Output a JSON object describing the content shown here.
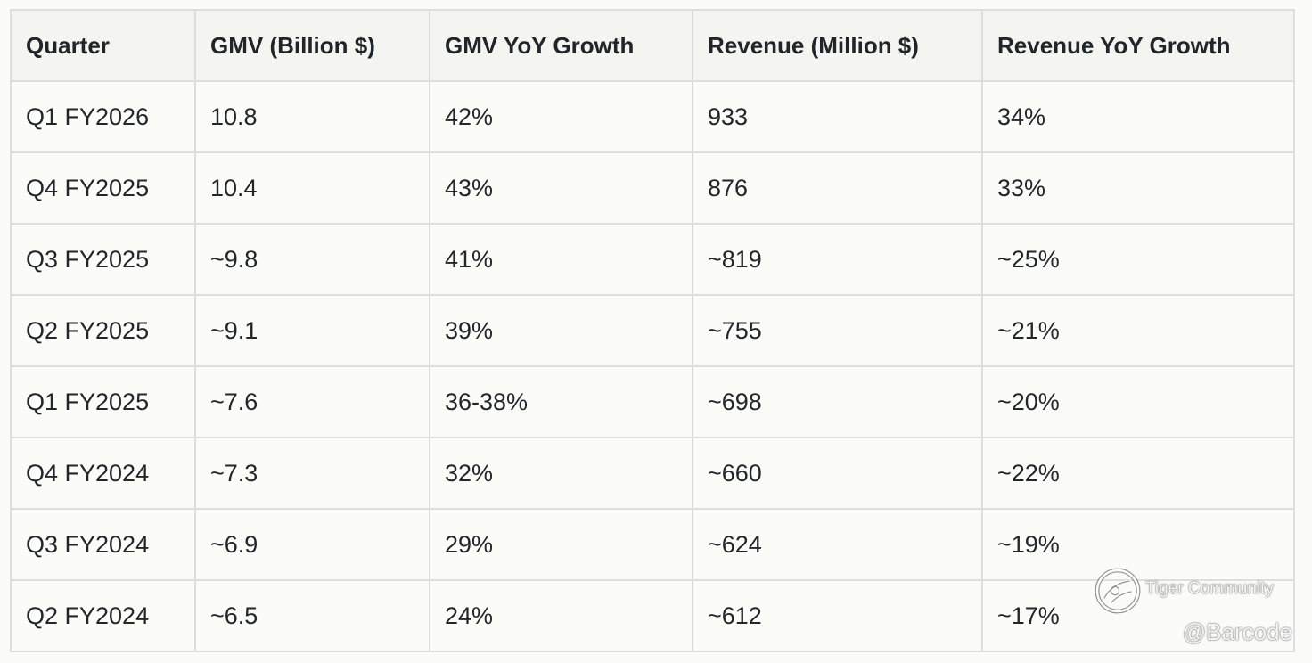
{
  "table": {
    "headers": [
      "Quarter",
      "GMV (Billion $)",
      "GMV YoY Growth",
      "Revenue (Million $)",
      "Revenue YoY Growth"
    ],
    "rows": [
      [
        "Q1 FY2026",
        "10.8",
        "42%",
        "933",
        "34%"
      ],
      [
        "Q4 FY2025",
        "10.4",
        "43%",
        "876",
        "33%"
      ],
      [
        "Q3 FY2025",
        "~9.8",
        "41%",
        "~819",
        "~25%"
      ],
      [
        "Q2 FY2025",
        "~9.1",
        "39%",
        "~755",
        "~21%"
      ],
      [
        "Q1 FY2025",
        "~7.6",
        "36-38%",
        "~698",
        "~20%"
      ],
      [
        "Q4 FY2024",
        "~7.3",
        "32%",
        "~660",
        "~22%"
      ],
      [
        "Q3 FY2024",
        "~6.9",
        "29%",
        "~624",
        "~19%"
      ],
      [
        "Q2 FY2024",
        "~6.5",
        "24%",
        "~612",
        "~17%"
      ]
    ]
  },
  "watermark": {
    "brand": "Tiger Community",
    "handle": "@Barcode",
    "icon": "tiger-community-logo-icon"
  },
  "colors": {
    "background": "#fbfbf8",
    "header_background": "#f4f4f1",
    "border": "#dcdfe0",
    "text": "#22272b"
  }
}
